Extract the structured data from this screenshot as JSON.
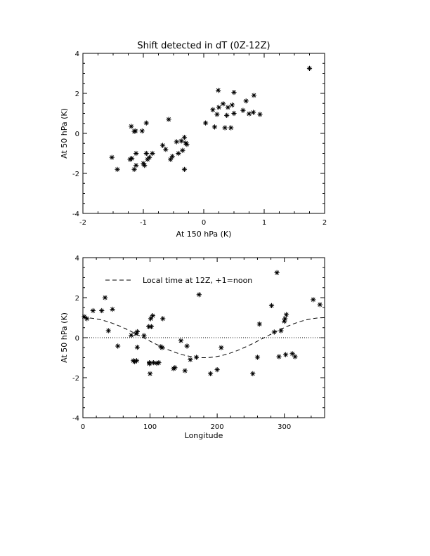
{
  "chart_data": [
    {
      "type": "scatter",
      "title": "Shift detected in dT (0Z-12Z)",
      "xlabel": "At 150 hPa (K)",
      "ylabel": "At 50 hPa (K)",
      "xlim": [
        -2,
        2
      ],
      "ylim": [
        -4,
        4
      ],
      "xticks": [
        "-2",
        "-1",
        "0",
        "1",
        "2"
      ],
      "yticks": [
        "-4",
        "-2",
        "0",
        "2",
        "4"
      ],
      "marker": "*",
      "grid": false,
      "points": [
        [
          -1.52,
          -1.2
        ],
        [
          -1.43,
          -1.8
        ],
        [
          -1.22,
          -1.3
        ],
        [
          -1.19,
          -1.25
        ],
        [
          -1.2,
          0.35
        ],
        [
          -1.15,
          0.1
        ],
        [
          -1.13,
          0.12
        ],
        [
          -1.15,
          -1.8
        ],
        [
          -1.12,
          -1.6
        ],
        [
          -1.12,
          -1.0
        ],
        [
          -1.02,
          0.12
        ],
        [
          -1.0,
          -1.5
        ],
        [
          -0.98,
          -1.6
        ],
        [
          -0.95,
          0.52
        ],
        [
          -0.95,
          -1.0
        ],
        [
          -0.93,
          -1.3
        ],
        [
          -0.9,
          -1.2
        ],
        [
          -0.85,
          -1.0
        ],
        [
          -0.68,
          -0.6
        ],
        [
          -0.63,
          -0.8
        ],
        [
          -0.58,
          0.7
        ],
        [
          -0.55,
          -1.3
        ],
        [
          -0.52,
          -1.15
        ],
        [
          -0.45,
          -0.42
        ],
        [
          -0.42,
          -1.0
        ],
        [
          -0.37,
          -0.38
        ],
        [
          -0.35,
          -0.85
        ],
        [
          -0.32,
          -0.2
        ],
        [
          -0.3,
          -0.48
        ],
        [
          -0.32,
          -1.8
        ],
        [
          -0.28,
          -0.55
        ],
        [
          0.03,
          0.52
        ],
        [
          0.15,
          1.18
        ],
        [
          0.18,
          0.32
        ],
        [
          0.22,
          0.95
        ],
        [
          0.24,
          2.15
        ],
        [
          0.25,
          1.3
        ],
        [
          0.32,
          1.48
        ],
        [
          0.35,
          0.28
        ],
        [
          0.38,
          0.9
        ],
        [
          0.4,
          1.3
        ],
        [
          0.45,
          0.28
        ],
        [
          0.47,
          1.42
        ],
        [
          0.5,
          2.05
        ],
        [
          0.5,
          1.0
        ],
        [
          0.65,
          1.15
        ],
        [
          0.7,
          1.62
        ],
        [
          0.75,
          0.98
        ],
        [
          0.82,
          1.05
        ],
        [
          0.83,
          1.9
        ],
        [
          0.93,
          0.95
        ],
        [
          1.75,
          3.25
        ]
      ]
    },
    {
      "type": "scatter",
      "title": "",
      "xlabel": "Longitude",
      "ylabel": "At 50 hPa (K)",
      "xlim": [
        0,
        360
      ],
      "ylim": [
        -4,
        4
      ],
      "xticks": [
        "0",
        "100",
        "200",
        "300"
      ],
      "yticks": [
        "-4",
        "-2",
        "0",
        "2",
        "4"
      ],
      "marker": "*",
      "grid": false,
      "zero_line": "dotted",
      "legend": {
        "label": "Local time at 12Z, +1=noon",
        "style": "dashed",
        "placement": "top-left"
      },
      "points": [
        [
          2,
          1.05
        ],
        [
          6,
          0.95
        ],
        [
          15,
          1.35
        ],
        [
          28,
          1.35
        ],
        [
          33,
          2.0
        ],
        [
          38,
          0.35
        ],
        [
          44,
          1.42
        ],
        [
          52,
          -0.42
        ],
        [
          72,
          0.12
        ],
        [
          75,
          -1.15
        ],
        [
          77,
          -1.2
        ],
        [
          79,
          0.2
        ],
        [
          80,
          -1.15
        ],
        [
          81,
          0.3
        ],
        [
          81,
          -0.48
        ],
        [
          91,
          0.1
        ],
        [
          98,
          0.55
        ],
        [
          99,
          -1.25
        ],
        [
          99,
          -1.3
        ],
        [
          100,
          -1.8
        ],
        [
          101,
          0.95
        ],
        [
          102,
          0.55
        ],
        [
          104,
          1.1
        ],
        [
          105,
          -1.25
        ],
        [
          110,
          -1.28
        ],
        [
          113,
          -1.25
        ],
        [
          116,
          -0.45
        ],
        [
          118,
          -0.5
        ],
        [
          119,
          0.95
        ],
        [
          135,
          -1.55
        ],
        [
          137,
          -1.5
        ],
        [
          146,
          -0.15
        ],
        [
          152,
          -1.65
        ],
        [
          155,
          -0.42
        ],
        [
          160,
          -1.1
        ],
        [
          169,
          -0.98
        ],
        [
          173,
          2.15
        ],
        [
          190,
          -1.8
        ],
        [
          200,
          -1.6
        ],
        [
          206,
          -0.5
        ],
        [
          253,
          -1.8
        ],
        [
          260,
          -0.98
        ],
        [
          263,
          0.68
        ],
        [
          281,
          1.6
        ],
        [
          285,
          0.28
        ],
        [
          289,
          3.25
        ],
        [
          292,
          -0.95
        ],
        [
          295,
          0.35
        ],
        [
          300,
          0.82
        ],
        [
          301,
          0.95
        ],
        [
          302,
          -0.85
        ],
        [
          303,
          1.15
        ],
        [
          312,
          -0.8
        ],
        [
          316,
          -0.95
        ],
        [
          343,
          1.9
        ],
        [
          353,
          1.65
        ]
      ]
    }
  ]
}
